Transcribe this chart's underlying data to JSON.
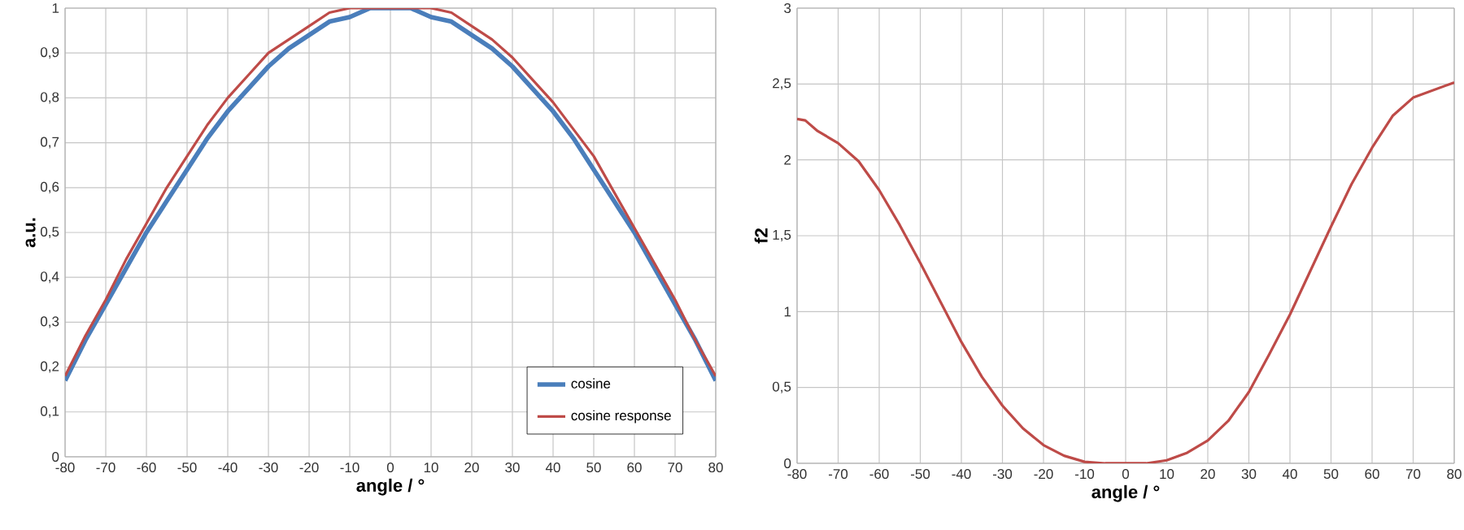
{
  "chart_data": [
    {
      "type": "line",
      "xlabel": "angle / °",
      "ylabel": "a.u.",
      "xlim": [
        -80,
        80
      ],
      "xticks": [
        -80,
        -70,
        -60,
        -50,
        -40,
        -30,
        -20,
        -10,
        0,
        10,
        20,
        30,
        40,
        50,
        60,
        70,
        80
      ],
      "ylim": [
        0,
        1
      ],
      "yticks": [
        0,
        {
          "value": 0.1,
          "label": "0,1"
        },
        {
          "value": 0.2,
          "label": "0,2"
        },
        {
          "value": 0.3,
          "label": "0,3"
        },
        {
          "value": 0.4,
          "label": "0,4"
        },
        {
          "value": 0.5,
          "label": "0,5"
        },
        {
          "value": 0.6,
          "label": "0,6"
        },
        {
          "value": 0.7,
          "label": "0,7"
        },
        {
          "value": 0.8,
          "label": "0,8"
        },
        {
          "value": 0.9,
          "label": "0,9"
        },
        1
      ],
      "grid": true,
      "legend": "bottom right",
      "marker": "none",
      "line_style": "solid",
      "x": [
        -80,
        -75,
        -70,
        -65,
        -60,
        -55,
        -50,
        -45,
        -40,
        -35,
        -30,
        -25,
        -20,
        -15,
        -10,
        -5,
        0,
        5,
        10,
        15,
        20,
        25,
        30,
        35,
        40,
        45,
        50,
        55,
        60,
        65,
        70,
        75,
        80
      ],
      "series": [
        {
          "name": "cosine",
          "color": "#4a7ebb",
          "values": [
            0.17,
            0.26,
            0.34,
            0.42,
            0.5,
            0.57,
            0.64,
            0.71,
            0.77,
            0.82,
            0.87,
            0.91,
            0.94,
            0.97,
            0.98,
            1.0,
            1.0,
            1.0,
            0.98,
            0.97,
            0.94,
            0.91,
            0.87,
            0.82,
            0.77,
            0.71,
            0.64,
            0.57,
            0.5,
            0.42,
            0.34,
            0.26,
            0.17
          ]
        },
        {
          "name": "cosine response",
          "color": "#be4b48",
          "values": [
            0.18,
            0.27,
            0.35,
            0.44,
            0.52,
            0.6,
            0.67,
            0.74,
            0.8,
            0.85,
            0.9,
            0.93,
            0.96,
            0.99,
            1.0,
            1.0,
            1.0,
            1.0,
            1.0,
            0.99,
            0.96,
            0.93,
            0.89,
            0.84,
            0.79,
            0.73,
            0.67,
            0.59,
            0.51,
            0.43,
            0.35,
            0.26,
            0.18
          ]
        }
      ]
    },
    {
      "type": "line",
      "xlabel": "angle / °",
      "ylabel": "f2",
      "xlim": [
        -80,
        80
      ],
      "xticks": [
        -80,
        -70,
        -60,
        -50,
        -40,
        -30,
        -20,
        -10,
        0,
        10,
        20,
        30,
        40,
        50,
        60,
        70,
        80
      ],
      "ylim": [
        0,
        3
      ],
      "yticks": [
        0,
        {
          "value": 0.5,
          "label": "0,5"
        },
        1,
        {
          "value": 1.5,
          "label": "1,5"
        },
        2,
        {
          "value": 2.5,
          "label": "2,5"
        },
        3
      ],
      "grid": true,
      "marker": "none",
      "line_style": "solid",
      "x": [
        -80,
        -78,
        -75,
        -70,
        -65,
        -60,
        -55,
        -50,
        -45,
        -40,
        -35,
        -30,
        -25,
        -20,
        -15,
        -10,
        -5,
        0,
        5,
        10,
        15,
        20,
        25,
        30,
        35,
        40,
        45,
        50,
        55,
        60,
        65,
        70,
        75,
        80
      ],
      "series": [
        {
          "color": "#be4b48",
          "values": [
            2.27,
            2.26,
            2.19,
            2.11,
            1.99,
            1.8,
            1.57,
            1.32,
            1.06,
            0.8,
            0.57,
            0.38,
            0.23,
            0.12,
            0.05,
            0.01,
            0.0,
            0.0,
            0.0,
            0.02,
            0.07,
            0.15,
            0.28,
            0.47,
            0.72,
            0.98,
            1.27,
            1.56,
            1.84,
            2.08,
            2.29,
            2.41,
            2.46,
            2.51
          ]
        }
      ]
    }
  ]
}
